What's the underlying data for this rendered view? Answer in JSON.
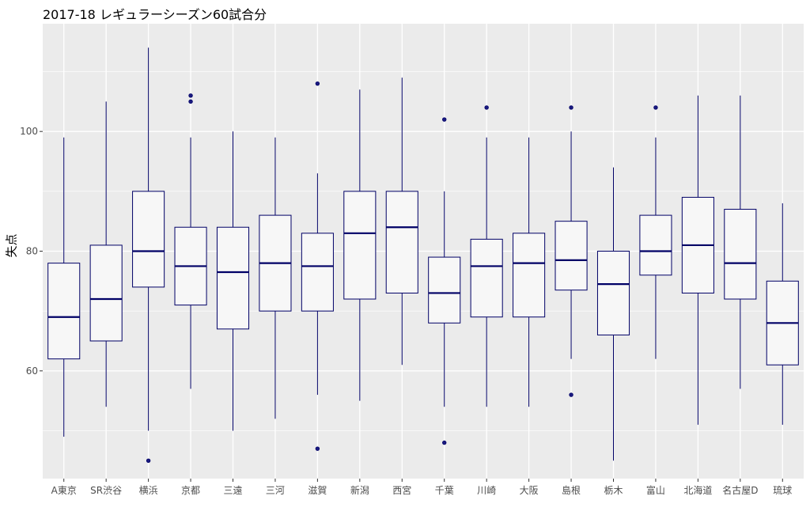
{
  "chart_data": {
    "type": "box",
    "title": "2017-18 レギュラーシーズン60試合分",
    "xlabel": "",
    "ylabel": "失点",
    "ylim": [
      42,
      118
    ],
    "yticks": [
      60,
      80,
      100
    ],
    "grid": true,
    "colors": {
      "panel": "#ebebeb",
      "grid": "#ffffff",
      "box_fill": "#f7f7f7",
      "box_line": "#000066",
      "outlier": "#1a1a80"
    },
    "categories": [
      "A東京",
      "SR渋谷",
      "横浜",
      "京都",
      "三遠",
      "三河",
      "滋賀",
      "新潟",
      "西宮",
      "千葉",
      "川崎",
      "大阪",
      "島根",
      "栃木",
      "富山",
      "北海道",
      "名古屋D",
      "琉球"
    ],
    "boxes": [
      {
        "min": 49,
        "q1": 62,
        "median": 69,
        "q3": 78,
        "max": 99,
        "outliers": []
      },
      {
        "min": 54,
        "q1": 65,
        "median": 72,
        "q3": 81,
        "max": 105,
        "outliers": []
      },
      {
        "min": 50,
        "q1": 74,
        "median": 80,
        "q3": 90,
        "max": 114,
        "outliers": [
          45
        ]
      },
      {
        "min": 57,
        "q1": 71,
        "median": 77.5,
        "q3": 84,
        "max": 99,
        "outliers": [
          105,
          106
        ]
      },
      {
        "min": 50,
        "q1": 67,
        "median": 76.5,
        "q3": 84,
        "max": 100,
        "outliers": []
      },
      {
        "min": 52,
        "q1": 70,
        "median": 78,
        "q3": 86,
        "max": 99,
        "outliers": []
      },
      {
        "min": 56,
        "q1": 70,
        "median": 77.5,
        "q3": 83,
        "max": 93,
        "outliers": [
          47,
          108
        ]
      },
      {
        "min": 55,
        "q1": 72,
        "median": 83,
        "q3": 90,
        "max": 107,
        "outliers": []
      },
      {
        "min": 61,
        "q1": 73,
        "median": 84,
        "q3": 90,
        "max": 109,
        "outliers": []
      },
      {
        "min": 54,
        "q1": 68,
        "median": 73,
        "q3": 79,
        "max": 90,
        "outliers": [
          48,
          102
        ]
      },
      {
        "min": 54,
        "q1": 69,
        "median": 77.5,
        "q3": 82,
        "max": 99,
        "outliers": [
          104
        ]
      },
      {
        "min": 54,
        "q1": 69,
        "median": 78,
        "q3": 83,
        "max": 99,
        "outliers": []
      },
      {
        "min": 62,
        "q1": 73.5,
        "median": 78.5,
        "q3": 85,
        "max": 100,
        "outliers": [
          56,
          104
        ]
      },
      {
        "min": 45,
        "q1": 66,
        "median": 74.5,
        "q3": 80,
        "max": 94,
        "outliers": []
      },
      {
        "min": 62,
        "q1": 76,
        "median": 80,
        "q3": 86,
        "max": 99,
        "outliers": [
          104
        ]
      },
      {
        "min": 51,
        "q1": 73,
        "median": 81,
        "q3": 89,
        "max": 106,
        "outliers": []
      },
      {
        "min": 57,
        "q1": 72,
        "median": 78,
        "q3": 87,
        "max": 106,
        "outliers": []
      },
      {
        "min": 51,
        "q1": 61,
        "median": 68,
        "q3": 75,
        "max": 88,
        "outliers": []
      }
    ]
  }
}
